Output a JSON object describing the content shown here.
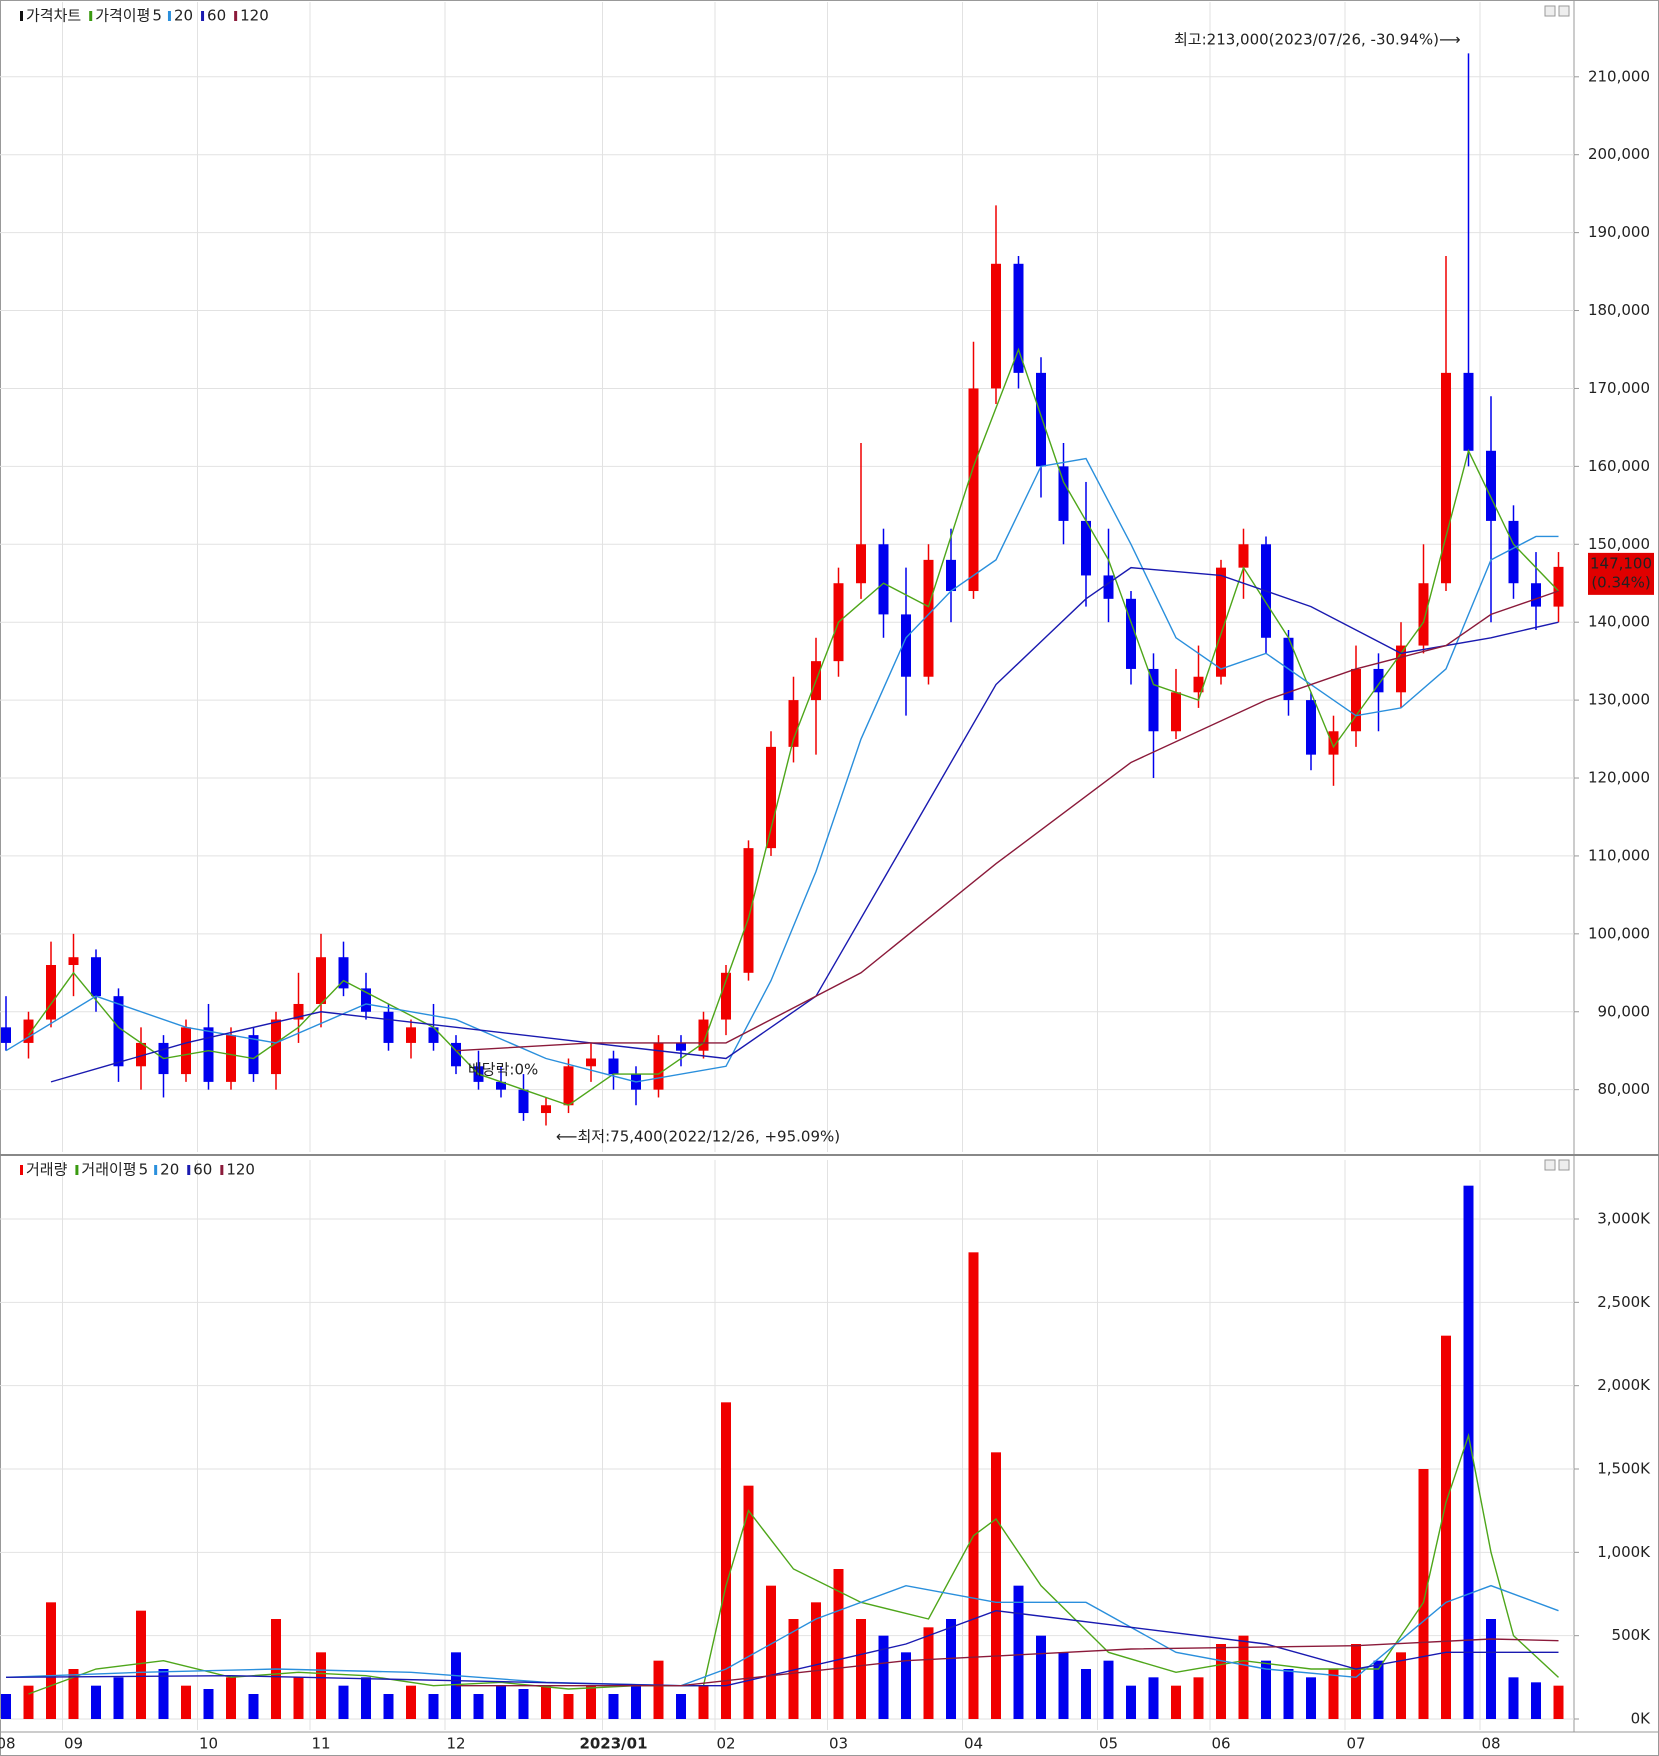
{
  "chart_data": [
    {
      "type": "candlestick",
      "name": "가격차트",
      "up_color": "#f00000",
      "down_color": "#0000ee",
      "open": [
        88000,
        86000,
        89000,
        96000,
        97000,
        92000,
        83000,
        86000,
        82000,
        88000,
        81000,
        87000,
        82000,
        89000,
        91000,
        97000,
        93000,
        90000,
        86000,
        88000,
        86000,
        83000,
        81000,
        80000,
        77000,
        78000,
        83000,
        84000,
        82000,
        80000,
        86000,
        85000,
        89000,
        95000,
        111000,
        124000,
        130000,
        135000,
        145000,
        150000,
        141000,
        133000,
        148000,
        144000,
        170000,
        186000,
        172000,
        160000,
        153000,
        146000,
        143000,
        134000,
        126000,
        131000,
        133000,
        147000,
        150000,
        138000,
        130000,
        123000,
        126000,
        134000,
        131000,
        137000,
        145000,
        172000,
        162000,
        153000,
        145000,
        142000
      ],
      "high": [
        92000,
        90000,
        99000,
        100000,
        98000,
        93000,
        88000,
        87000,
        89000,
        91000,
        88000,
        88000,
        90000,
        95000,
        100000,
        99000,
        95000,
        91000,
        89000,
        91000,
        87000,
        85000,
        83000,
        82000,
        79000,
        84000,
        86000,
        85000,
        83000,
        87000,
        87000,
        90000,
        96000,
        112000,
        126000,
        133000,
        138000,
        147000,
        163000,
        152000,
        147000,
        150000,
        152000,
        176000,
        193500,
        187000,
        174000,
        163000,
        158000,
        152000,
        144000,
        136000,
        134000,
        137000,
        148000,
        152000,
        151000,
        139000,
        131000,
        128000,
        137000,
        136000,
        140000,
        150000,
        187000,
        213000,
        169000,
        155000,
        149000,
        149000
      ],
      "low": [
        85000,
        84000,
        88000,
        92000,
        90000,
        81000,
        80000,
        79000,
        81000,
        80000,
        80000,
        81000,
        80000,
        86000,
        88000,
        92000,
        89000,
        85000,
        84000,
        85000,
        82000,
        80000,
        79000,
        76000,
        75400,
        77000,
        81000,
        80000,
        78000,
        79000,
        83000,
        84000,
        87000,
        94000,
        110000,
        122000,
        123000,
        133000,
        143000,
        138000,
        128000,
        132000,
        140000,
        143000,
        168000,
        170000,
        156000,
        150000,
        142000,
        140000,
        132000,
        120000,
        125000,
        129000,
        132000,
        143000,
        136000,
        128000,
        121000,
        119000,
        124000,
        126000,
        129000,
        136000,
        144000,
        160000,
        140000,
        143000,
        139000,
        140000
      ],
      "close": [
        86000,
        89000,
        96000,
        97000,
        92000,
        83000,
        86000,
        82000,
        88000,
        81000,
        87000,
        82000,
        89000,
        91000,
        97000,
        93000,
        90000,
        86000,
        88000,
        86000,
        83000,
        81000,
        80000,
        77000,
        78000,
        83000,
        84000,
        82000,
        80000,
        86000,
        85000,
        89000,
        95000,
        111000,
        124000,
        130000,
        135000,
        145000,
        150000,
        141000,
        133000,
        148000,
        144000,
        170000,
        186000,
        172000,
        160000,
        153000,
        146000,
        143000,
        134000,
        126000,
        131000,
        133000,
        147000,
        150000,
        138000,
        130000,
        123000,
        126000,
        134000,
        131000,
        137000,
        145000,
        172000,
        162000,
        153000,
        145000,
        142000,
        147100
      ],
      "ma_label": "가격이평",
      "ma_label_color": "#3a9a10",
      "ma": [
        {
          "name": "5",
          "color": "#4ea61a",
          "x": [
            1,
            3,
            5,
            7,
            9,
            11,
            13,
            15,
            17,
            19,
            21,
            23,
            25,
            27,
            29,
            31,
            33,
            35,
            37,
            39,
            41,
            43,
            45,
            47,
            49,
            51,
            53,
            55,
            57,
            59,
            61,
            63,
            65,
            67,
            69
          ],
          "values": [
            87000,
            95000,
            88000,
            84000,
            85000,
            84000,
            88000,
            94000,
            91000,
            88000,
            82000,
            80000,
            78000,
            82000,
            82000,
            86000,
            102000,
            125000,
            140000,
            145000,
            142000,
            160000,
            175000,
            158000,
            148000,
            132000,
            130000,
            147000,
            138000,
            124000,
            132000,
            140000,
            162000,
            150000,
            144000
          ]
        },
        {
          "name": "20",
          "color": "#2a8fdc",
          "x": [
            0,
            4,
            8,
            12,
            16,
            20,
            24,
            28,
            32,
            34,
            36,
            38,
            40,
            42,
            44,
            46,
            48,
            50,
            52,
            54,
            56,
            58,
            60,
            62,
            64,
            66,
            68,
            69
          ],
          "values": [
            85000,
            92000,
            88000,
            86000,
            91000,
            89000,
            84000,
            81000,
            83000,
            94000,
            108000,
            125000,
            138000,
            144000,
            148000,
            160000,
            161000,
            150000,
            138000,
            134000,
            136000,
            132000,
            128000,
            129000,
            134000,
            148000,
            151000,
            151000
          ]
        },
        {
          "name": "60",
          "color": "#1a1ab0",
          "x": [
            2,
            8,
            14,
            20,
            26,
            32,
            36,
            40,
            44,
            48,
            50,
            54,
            58,
            62,
            66,
            69
          ],
          "values": [
            81000,
            86000,
            90000,
            88000,
            86000,
            84000,
            92000,
            112000,
            132000,
            143000,
            147000,
            146000,
            142000,
            136000,
            138000,
            140000
          ]
        },
        {
          "name": "120",
          "color": "#8b1a3a",
          "x": [
            20,
            26,
            32,
            38,
            44,
            50,
            56,
            60,
            64,
            66,
            69
          ],
          "values": [
            85000,
            86000,
            86000,
            95000,
            109000,
            122000,
            130000,
            134000,
            137000,
            141000,
            144000
          ]
        }
      ],
      "ylim": [
        72000,
        219600
      ],
      "yticks": [
        {
          "value": 80000,
          "label": "80,000"
        },
        {
          "value": 90000,
          "label": "90,000"
        },
        {
          "value": 100000,
          "label": "100,000"
        },
        {
          "value": 110000,
          "label": "110,000"
        },
        {
          "value": 120000,
          "label": "120,000"
        },
        {
          "value": 130000,
          "label": "130,000"
        },
        {
          "value": 140000,
          "label": "140,000"
        },
        {
          "value": 150000,
          "label": "150,000"
        },
        {
          "value": 160000,
          "label": "160,000"
        },
        {
          "value": 170000,
          "label": "170,000"
        },
        {
          "value": 180000,
          "label": "180,000"
        },
        {
          "value": 190000,
          "label": "190,000"
        },
        {
          "value": 200000,
          "label": "200,000"
        },
        {
          "value": 210000,
          "label": "210,000"
        }
      ],
      "grid": true,
      "last_price": {
        "value": 147100,
        "label": "147,100"
      },
      "last_change": "(0.34%)",
      "annotation_high": "최고:213,000(2023/07/26, -30.94%)⟶",
      "annotation_low": "⟵최저:75,400(2022/12/26, +95.09%)",
      "annotation_dividend": "배당락:0%"
    },
    {
      "type": "bar",
      "name": "거래량",
      "color_rule": "candle",
      "categories": [
        "08",
        null,
        null,
        "09",
        null,
        null,
        null,
        null,
        null,
        "10",
        null,
        null,
        null,
        null,
        "11",
        null,
        null,
        null,
        null,
        null,
        "12",
        null,
        null,
        null,
        null,
        null,
        null,
        "2023/01",
        null,
        null,
        null,
        null,
        "02",
        null,
        null,
        null,
        null,
        "03",
        null,
        null,
        null,
        null,
        null,
        "04",
        null,
        null,
        null,
        null,
        null,
        "05",
        null,
        null,
        null,
        null,
        "06",
        null,
        null,
        null,
        null,
        null,
        "07",
        null,
        null,
        null,
        null,
        null,
        "08",
        null,
        null,
        null
      ],
      "values": [
        150,
        200,
        700,
        300,
        200,
        250,
        650,
        300,
        200,
        180,
        250,
        150,
        600,
        250,
        400,
        200,
        250,
        150,
        200,
        150,
        400,
        150,
        200,
        180,
        200,
        150,
        200,
        150,
        200,
        350,
        150,
        200,
        1900,
        1400,
        800,
        600,
        700,
        900,
        600,
        500,
        400,
        550,
        600,
        2800,
        1600,
        800,
        500,
        400,
        300,
        350,
        200,
        250,
        200,
        250,
        450,
        500,
        350,
        300,
        250,
        300,
        450,
        350,
        400,
        1500,
        2300,
        3200,
        600,
        250,
        220,
        200
      ],
      "ma_label": "거래이평",
      "ma_label_color": "#3a9a10",
      "ma": [
        {
          "name": "5",
          "color": "#4ea61a",
          "x": [
            1,
            4,
            7,
            10,
            13,
            16,
            19,
            22,
            25,
            28,
            31,
            32,
            33,
            35,
            38,
            41,
            43,
            44,
            46,
            49,
            52,
            55,
            58,
            61,
            63,
            64,
            65,
            66,
            67,
            69
          ],
          "values": [
            150,
            300,
            350,
            250,
            280,
            260,
            200,
            220,
            180,
            200,
            200,
            800,
            1250,
            900,
            700,
            600,
            1100,
            1200,
            800,
            400,
            280,
            350,
            300,
            300,
            700,
            1300,
            1700,
            1000,
            500,
            250
          ]
        },
        {
          "name": "20",
          "color": "#2a8fdc",
          "x": [
            0,
            6,
            12,
            18,
            24,
            30,
            32,
            36,
            40,
            44,
            48,
            52,
            56,
            60,
            64,
            66,
            69
          ],
          "values": [
            250,
            280,
            300,
            280,
            220,
            200,
            300,
            600,
            800,
            700,
            700,
            400,
            300,
            250,
            700,
            800,
            650
          ]
        },
        {
          "name": "60",
          "color": "#1a1ab0",
          "x": [
            0,
            10,
            20,
            30,
            32,
            40,
            44,
            50,
            56,
            60,
            64,
            66,
            69
          ],
          "values": [
            250,
            260,
            230,
            200,
            200,
            450,
            650,
            550,
            450,
            300,
            400,
            400,
            400
          ]
        },
        {
          "name": "120",
          "color": "#8b1a3a",
          "x": [
            20,
            30,
            40,
            50,
            60,
            66,
            69
          ],
          "values": [
            200,
            200,
            350,
            420,
            440,
            480,
            470
          ]
        }
      ],
      "ylim": [
        -66,
        3354
      ],
      "yticks": [
        {
          "value": 0,
          "label": "0K"
        },
        {
          "value": 500,
          "label": "500K"
        },
        {
          "value": 1000,
          "label": "1,000K"
        },
        {
          "value": 1500,
          "label": "1,500K"
        },
        {
          "value": 2000,
          "label": "2,000K"
        },
        {
          "value": 2500,
          "label": "2,500K"
        },
        {
          "value": 3000,
          "label": "3,000K"
        }
      ],
      "grid": true
    }
  ]
}
